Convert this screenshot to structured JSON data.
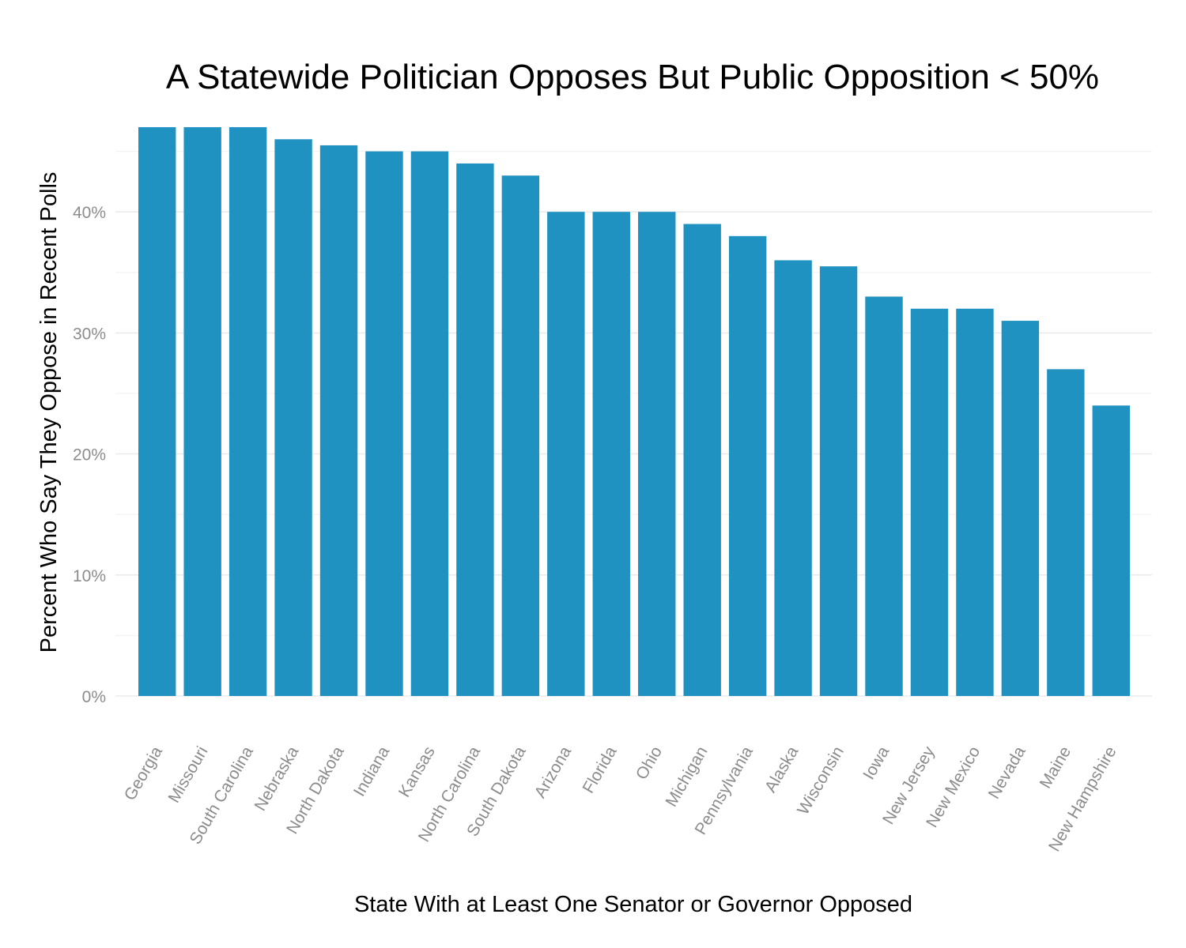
{
  "chart_data": {
    "type": "bar",
    "title": "A Statewide Politician Opposes But Public Opposition < 50%",
    "xlabel": "State With at Least One Senator or Governor Opposed",
    "ylabel": "Percent Who Say They Oppose in Recent Polls",
    "categories": [
      "Georgia",
      "Missouri",
      "South Carolina",
      "Nebraska",
      "North Dakota",
      "Indiana",
      "Kansas",
      "North Carolina",
      "South Dakota",
      "Arizona",
      "Florida",
      "Ohio",
      "Michigan",
      "Pennsylvania",
      "Alaska",
      "Wisconsin",
      "Iowa",
      "New Jersey",
      "New Mexico",
      "Nevada",
      "Maine",
      "New Hampshire"
    ],
    "values": [
      47,
      47,
      47,
      46,
      45.5,
      45,
      45,
      44,
      43,
      40,
      40,
      40,
      39,
      38,
      36,
      35.5,
      33,
      32,
      32,
      31,
      27,
      24
    ],
    "ylim": [
      0,
      50
    ],
    "y_ticks": [
      0,
      10,
      20,
      30,
      40
    ],
    "y_tick_labels": [
      "0%",
      "10%",
      "20%",
      "30%",
      "40%"
    ],
    "bar_color": "#2092c1",
    "grid": true,
    "legend": "none"
  }
}
